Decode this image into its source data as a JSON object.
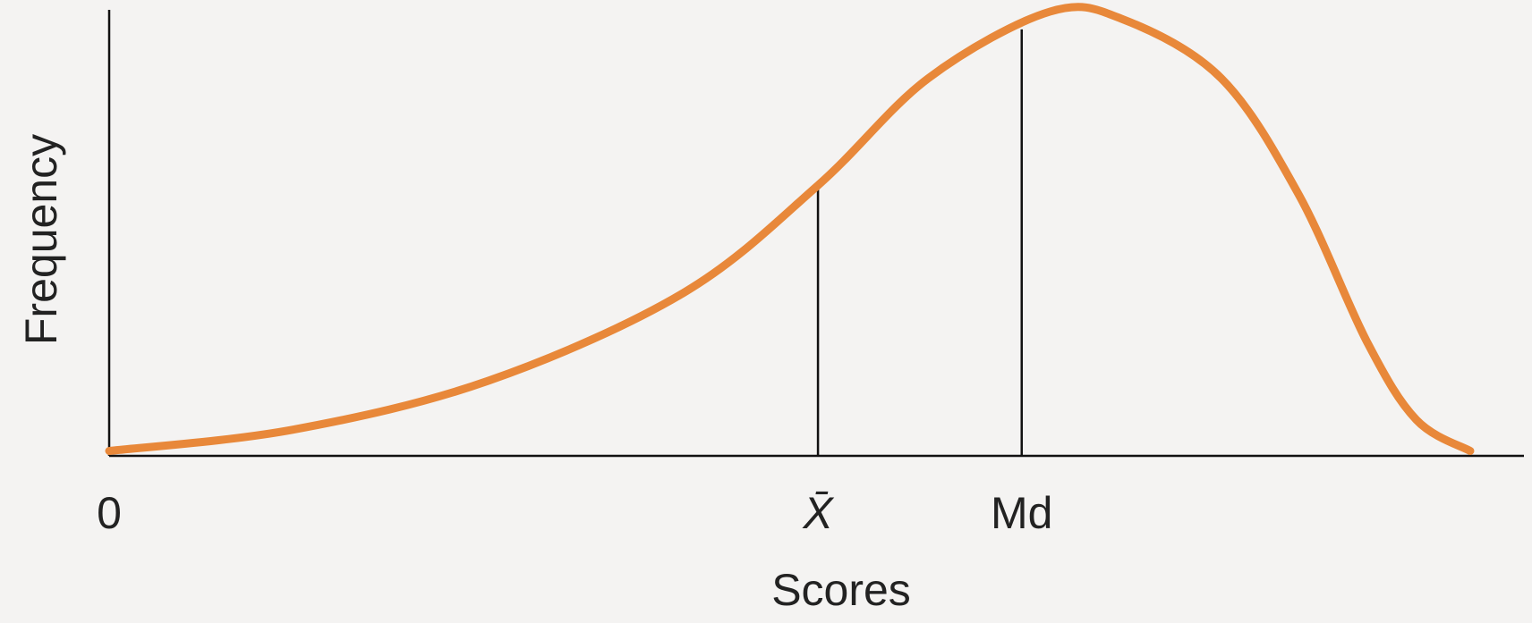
{
  "chart_data": {
    "type": "line",
    "x_label": "Scores",
    "y_label": "Frequency",
    "x": [
      0,
      13,
      26.8,
      40.6,
      50.1,
      57.9,
      66.5,
      71.7,
      78.6,
      84.1,
      88.9,
      92.4,
      96.2
    ],
    "values": [
      1.1,
      5.9,
      16.9,
      36.7,
      60.9,
      85,
      100,
      98.2,
      85,
      58.7,
      25.7,
      8.1,
      1.1
    ],
    "color": "#e8883a",
    "xlim": [
      0,
      100
    ],
    "ylim": [
      0,
      100
    ],
    "xticks": [
      0
    ],
    "annotations": [
      {
        "label": "X̄",
        "x": 50.1,
        "y": 61
      },
      {
        "label": "Md",
        "x": 64.5,
        "y": 96
      }
    ]
  }
}
